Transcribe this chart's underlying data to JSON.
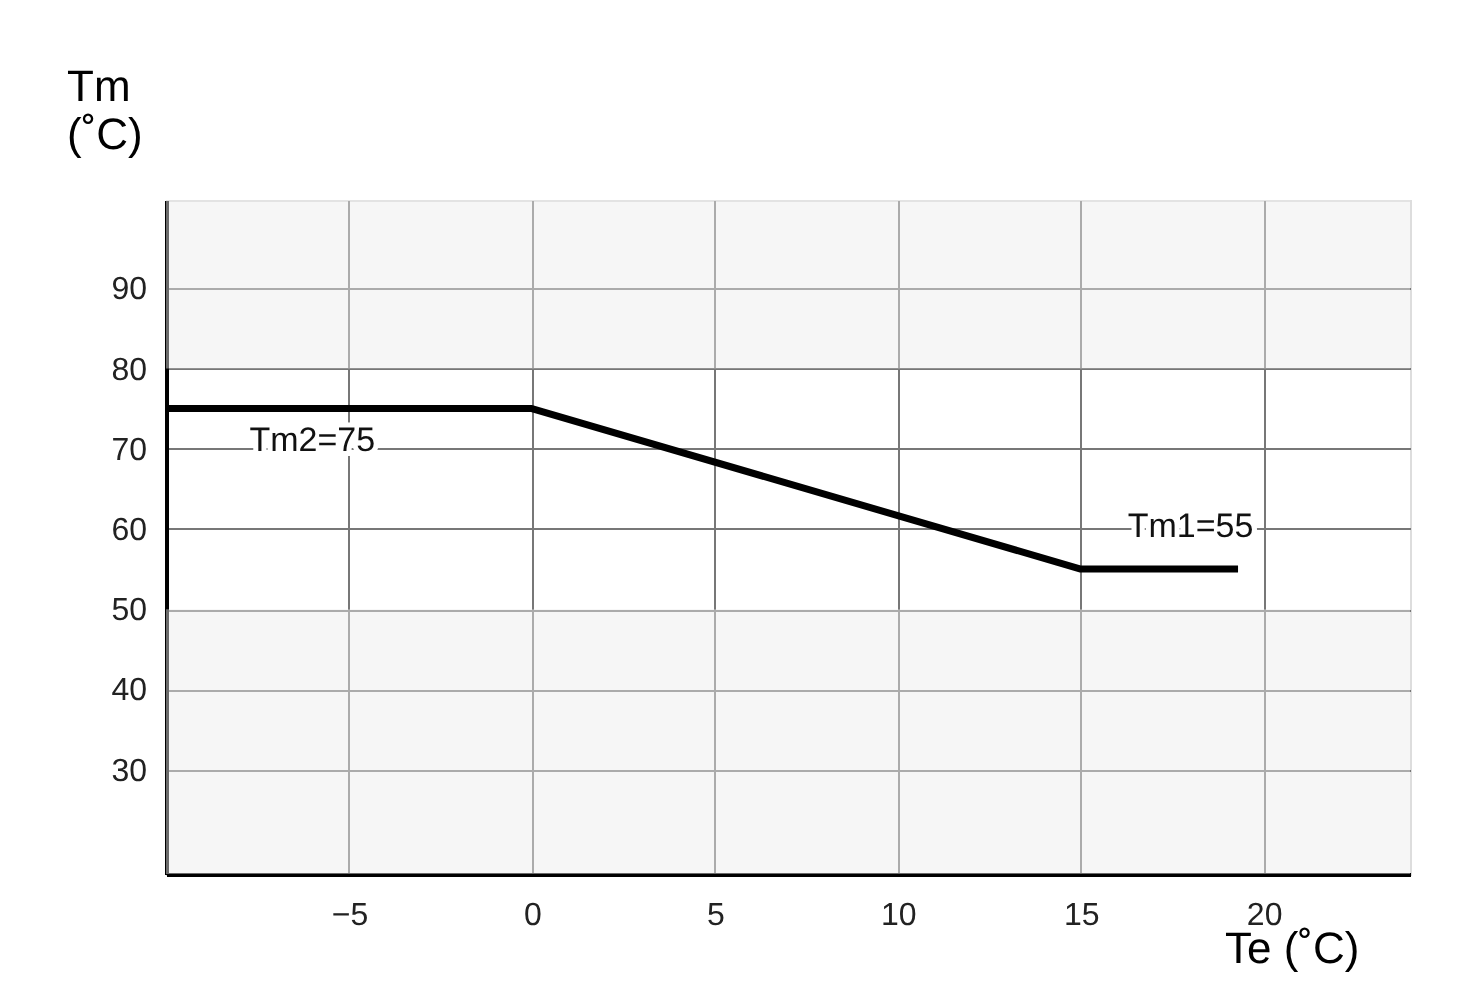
{
  "chart_data": {
    "type": "line",
    "xlabel": "Te (˚C)",
    "ylabel": "Tm (˚C)",
    "x": [
      -10,
      0,
      15,
      19.3
    ],
    "series": [
      {
        "color": "#000000",
        "values": [
          75,
          75,
          55,
          55
        ]
      }
    ],
    "xlim": [
      -10,
      24
    ],
    "ylim": [
      17,
      101
    ],
    "xticks": [
      -5,
      0,
      5,
      10,
      15,
      20
    ],
    "yticks": [
      30,
      40,
      50,
      60,
      70,
      80,
      90
    ],
    "grid": true,
    "marker": "none",
    "line_style": "solid",
    "bands": [
      {
        "axis": "y",
        "from": 80,
        "to": 101,
        "color": "#ebebeb"
      },
      {
        "axis": "y",
        "from": 17,
        "to": 50,
        "color": "#ebebeb"
      }
    ],
    "annotations": [
      {
        "text": "Tm2=75",
        "x": -6,
        "y": 75
      },
      {
        "text": "Tm1=55",
        "x": 18,
        "y": 55
      }
    ]
  }
}
